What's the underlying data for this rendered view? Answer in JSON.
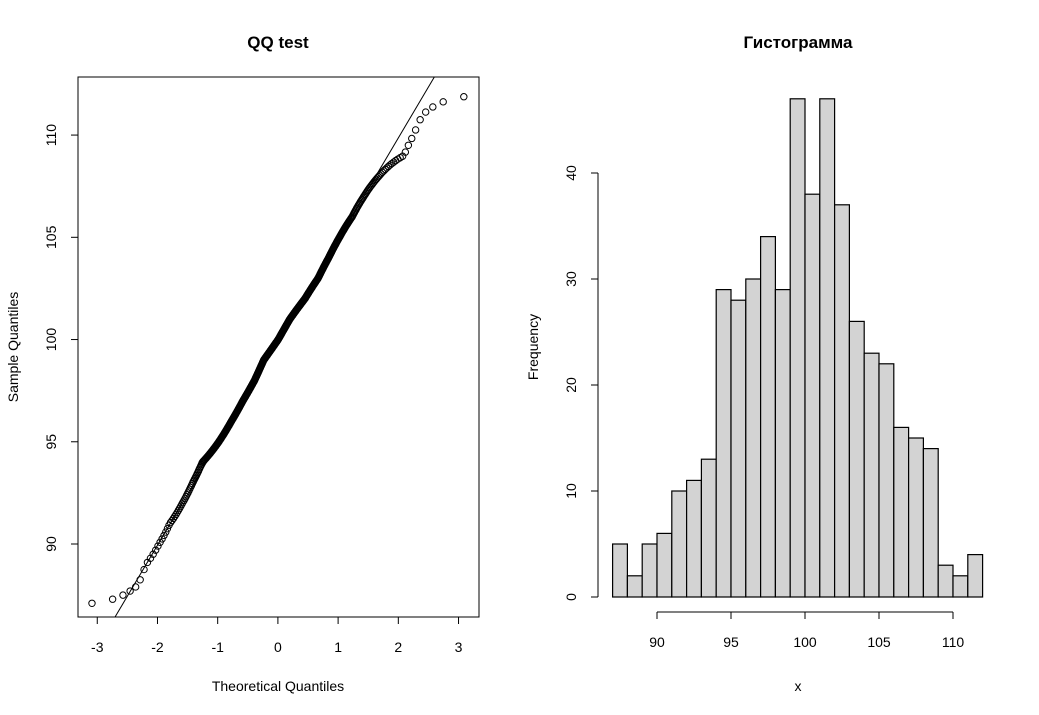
{
  "chart_data": [
    {
      "type": "scatter",
      "title": "QQ test",
      "xlabel": "Theoretical Quantiles",
      "ylabel": "Sample Quantiles",
      "xlim": [
        -3.32,
        3.34
      ],
      "ylim": [
        86.43,
        112.84
      ],
      "xticks": [
        "-3",
        "-2",
        "-1",
        "0",
        "1",
        "2",
        "3"
      ],
      "yticks": [
        "90",
        "95",
        "100",
        "105",
        "110"
      ],
      "n_points": 496,
      "sample_source": "sorted sample summarised by histogram counts below",
      "reference_line": {
        "intercept": 99.9,
        "slope": 4.98
      }
    },
    {
      "type": "bar",
      "title": "Гистограмма",
      "xlabel": "x",
      "ylabel": "Frequency",
      "bin_start": 87,
      "bin_width": 1,
      "values": [
        5,
        2,
        5,
        6,
        10,
        11,
        13,
        29,
        28,
        30,
        34,
        29,
        47,
        38,
        47,
        37,
        26,
        23,
        22,
        16,
        15,
        14,
        3,
        2,
        4
      ],
      "xticks": [
        "90",
        "95",
        "100",
        "105",
        "110"
      ],
      "yticks": [
        "0",
        "10",
        "20",
        "30",
        "40"
      ],
      "ylim": [
        0,
        47
      ],
      "bar_color": "#d3d3d3"
    }
  ]
}
